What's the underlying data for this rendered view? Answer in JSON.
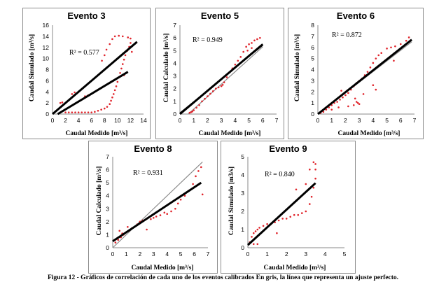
{
  "caption": "Figura 12 - Gráficos de correlación de cada uno de los eventos calibrados En gris, la línea que representa un ajuste perfecto.",
  "colors": {
    "points": "#e0242b",
    "fit": "#000000",
    "perfect": "#8a8a8a",
    "frame": "#8c8c8c"
  },
  "chart_data": [
    {
      "type": "scatter",
      "title": "Evento 3",
      "xlabel": "Caudal Medido [m³/s]",
      "ylabel": "Caudal Simulado [m³/s]",
      "r2": "R² = 0.577",
      "xlim": [
        0,
        14
      ],
      "ylim": [
        0,
        16
      ],
      "xticks": [
        0,
        2,
        4,
        6,
        8,
        10,
        12,
        14
      ],
      "yticks": [
        0,
        2,
        4,
        6,
        8,
        10,
        12,
        14,
        16
      ],
      "fit_line": [
        [
          0.8,
          0
        ],
        [
          11.6,
          7.6
        ]
      ],
      "perfect_line": [
        [
          0,
          0
        ],
        [
          13,
          13
        ]
      ],
      "points": [
        [
          1.2,
          2.0
        ],
        [
          1.5,
          2.1
        ],
        [
          3.0,
          3.6
        ],
        [
          3.4,
          3.9
        ],
        [
          2.0,
          0.3
        ],
        [
          2.5,
          0.3
        ],
        [
          3.0,
          0.3
        ],
        [
          3.5,
          0.3
        ],
        [
          4.0,
          0.3
        ],
        [
          4.5,
          0.3
        ],
        [
          5.0,
          0.3
        ],
        [
          5.5,
          0.3
        ],
        [
          6.0,
          0.3
        ],
        [
          6.5,
          0.4
        ],
        [
          7.0,
          0.6
        ],
        [
          7.5,
          0.8
        ],
        [
          8.0,
          1.0
        ],
        [
          8.4,
          1.3
        ],
        [
          8.8,
          1.8
        ],
        [
          9.0,
          2.4
        ],
        [
          9.2,
          3.0
        ],
        [
          9.4,
          3.6
        ],
        [
          9.6,
          4.3
        ],
        [
          9.8,
          5.0
        ],
        [
          10.0,
          5.8
        ],
        [
          10.2,
          6.6
        ],
        [
          10.4,
          7.4
        ],
        [
          10.6,
          8.2
        ],
        [
          10.8,
          9.0
        ],
        [
          11.0,
          9.8
        ],
        [
          11.2,
          10.6
        ],
        [
          11.5,
          11.4
        ],
        [
          11.8,
          12.1
        ],
        [
          12.0,
          12.8
        ],
        [
          12.0,
          13.6
        ],
        [
          11.6,
          13.8
        ],
        [
          10.8,
          14.0
        ],
        [
          10.2,
          14.1
        ],
        [
          9.6,
          14.0
        ],
        [
          9.2,
          13.5
        ],
        [
          8.8,
          12.6
        ],
        [
          8.3,
          11.6
        ],
        [
          8.0,
          10.6
        ],
        [
          7.6,
          9.6
        ],
        [
          11.0,
          7.0
        ],
        [
          12.2,
          11.2
        ],
        [
          5.5,
          3.4
        ],
        [
          5.0,
          3.2
        ]
      ]
    },
    {
      "type": "scatter",
      "title": "Evento 5",
      "xlabel": "Caudal Medido [m³/s]",
      "ylabel": "Caudal Calculado [m³/s]",
      "r2": "R² = 0.949",
      "xlim": [
        0,
        7
      ],
      "ylim": [
        0,
        7
      ],
      "xticks": [
        0,
        1,
        2,
        3,
        4,
        5,
        6,
        7
      ],
      "yticks": [
        0,
        1,
        2,
        3,
        4,
        5,
        6,
        7
      ],
      "fit_line": [
        [
          0,
          0.1
        ],
        [
          6.0,
          5.4
        ]
      ],
      "perfect_line": [
        [
          0.6,
          0
        ],
        [
          6.0,
          5.3
        ]
      ],
      "points": [
        [
          0.7,
          0.1
        ],
        [
          0.8,
          0.15
        ],
        [
          0.9,
          0.2
        ],
        [
          1.0,
          0.3
        ],
        [
          1.2,
          0.5
        ],
        [
          1.4,
          0.7
        ],
        [
          1.6,
          1.0
        ],
        [
          1.8,
          1.2
        ],
        [
          2.0,
          1.4
        ],
        [
          2.2,
          1.6
        ],
        [
          2.4,
          1.8
        ],
        [
          2.6,
          2.0
        ],
        [
          2.8,
          2.1
        ],
        [
          3.0,
          2.2
        ],
        [
          3.2,
          2.5
        ],
        [
          3.4,
          2.9
        ],
        [
          3.6,
          3.3
        ],
        [
          3.8,
          3.6
        ],
        [
          4.0,
          3.9
        ],
        [
          4.2,
          4.2
        ],
        [
          4.4,
          4.5
        ],
        [
          4.6,
          4.9
        ],
        [
          4.8,
          5.3
        ],
        [
          5.0,
          5.5
        ],
        [
          5.2,
          5.6
        ],
        [
          5.4,
          5.8
        ],
        [
          5.6,
          5.9
        ],
        [
          5.8,
          6.0
        ],
        [
          5.2,
          5.2
        ],
        [
          5.6,
          5.1
        ],
        [
          4.9,
          5.0
        ],
        [
          3.1,
          2.3
        ]
      ]
    },
    {
      "type": "scatter",
      "title": "Evento 6",
      "xlabel": "Caudal Medido [m³/s]",
      "ylabel": "Caudal Simulado [m³/s]",
      "r2": "R² = 0.872",
      "xlim": [
        0,
        7
      ],
      "ylim": [
        0,
        8
      ],
      "xticks": [
        0,
        1,
        2,
        3,
        4,
        5,
        6,
        7
      ],
      "yticks": [
        0,
        1,
        2,
        3,
        4,
        5,
        6,
        7,
        8
      ],
      "fit_line": [
        [
          0,
          0
        ],
        [
          6.8,
          6.7
        ]
      ],
      "perfect_line": [
        [
          0,
          0
        ],
        [
          6.8,
          6.5
        ]
      ],
      "points": [
        [
          0.2,
          0.1
        ],
        [
          0.4,
          0.2
        ],
        [
          0.6,
          0.4
        ],
        [
          0.8,
          0.6
        ],
        [
          1.0,
          0.8
        ],
        [
          1.2,
          1.0
        ],
        [
          1.4,
          1.1
        ],
        [
          1.6,
          1.3
        ],
        [
          1.8,
          1.5
        ],
        [
          2.0,
          1.7
        ],
        [
          2.2,
          1.9
        ],
        [
          2.4,
          2.2
        ],
        [
          2.6,
          2.5
        ],
        [
          2.8,
          2.8
        ],
        [
          3.0,
          3.0
        ],
        [
          3.2,
          3.2
        ],
        [
          3.4,
          3.5
        ],
        [
          3.6,
          3.8
        ],
        [
          3.8,
          4.2
        ],
        [
          4.0,
          4.6
        ],
        [
          4.2,
          5.0
        ],
        [
          4.4,
          5.3
        ],
        [
          4.6,
          5.5
        ],
        [
          5.0,
          5.9
        ],
        [
          5.3,
          6.0
        ],
        [
          5.6,
          6.1
        ],
        [
          6.0,
          6.3
        ],
        [
          6.4,
          6.6
        ],
        [
          6.6,
          6.9
        ],
        [
          2.7,
          1.4
        ],
        [
          2.8,
          1.1
        ],
        [
          2.9,
          1.0
        ],
        [
          3.0,
          0.9
        ],
        [
          2.6,
          0.8
        ],
        [
          2.2,
          0.7
        ],
        [
          1.5,
          0.6
        ],
        [
          1.0,
          0.4
        ],
        [
          4.0,
          2.6
        ],
        [
          4.2,
          2.2
        ],
        [
          5.5,
          4.8
        ],
        [
          3.3,
          1.8
        ],
        [
          1.7,
          2.1
        ]
      ]
    },
    {
      "type": "scatter",
      "title": "Evento 8",
      "xlabel": "Caudal Medido [m³/s]",
      "ylabel": "Caudal Calculado [m³/s]",
      "r2": "R² = 0.931",
      "xlim": [
        0,
        7
      ],
      "ylim": [
        0,
        7
      ],
      "xticks": [
        0,
        1,
        2,
        3,
        4,
        5,
        6,
        7
      ],
      "yticks": [
        0,
        1,
        2,
        3,
        4,
        5,
        6,
        7
      ],
      "fit_line": [
        [
          0,
          0.5
        ],
        [
          6.5,
          5.0
        ]
      ],
      "perfect_line": [
        [
          0,
          0
        ],
        [
          6.6,
          6.6
        ]
      ],
      "points": [
        [
          0.2,
          0.4
        ],
        [
          0.4,
          0.6
        ],
        [
          0.6,
          0.8
        ],
        [
          0.8,
          1.0
        ],
        [
          1.0,
          1.2
        ],
        [
          1.2,
          1.3
        ],
        [
          1.4,
          1.5
        ],
        [
          1.6,
          1.6
        ],
        [
          1.8,
          1.8
        ],
        [
          2.0,
          2.0
        ],
        [
          2.2,
          2.1
        ],
        [
          2.5,
          1.4
        ],
        [
          2.8,
          2.2
        ],
        [
          3.0,
          2.3
        ],
        [
          3.2,
          2.4
        ],
        [
          3.5,
          2.5
        ],
        [
          3.8,
          2.7
        ],
        [
          4.0,
          2.6
        ],
        [
          4.3,
          2.8
        ],
        [
          4.6,
          3.0
        ],
        [
          4.8,
          3.4
        ],
        [
          5.0,
          3.7
        ],
        [
          5.3,
          4.0
        ],
        [
          5.6,
          4.4
        ],
        [
          5.9,
          4.9
        ],
        [
          6.1,
          5.5
        ],
        [
          6.3,
          5.9
        ],
        [
          6.5,
          6.2
        ],
        [
          6.6,
          4.1
        ],
        [
          0.5,
          1.3
        ],
        [
          0.7,
          1.1
        ],
        [
          1.1,
          1.6
        ]
      ]
    },
    {
      "type": "scatter",
      "title": "Evento 9",
      "xlabel": "Caudal Medido [m³/s]",
      "ylabel": "Caudal Simulado [m3/s]",
      "r2": "R² = 0.840",
      "xlim": [
        0,
        5
      ],
      "ylim": [
        0,
        5
      ],
      "xticks": [
        0,
        1,
        2,
        3,
        4,
        5
      ],
      "yticks": [
        0,
        1,
        2,
        3,
        4,
        5
      ],
      "fit_line": [
        [
          0,
          0.15
        ],
        [
          3.5,
          3.55
        ]
      ],
      "perfect_line": [
        [
          0,
          0.1
        ],
        [
          3.4,
          3.4
        ]
      ],
      "points": [
        [
          0.1,
          0.3
        ],
        [
          0.2,
          0.6
        ],
        [
          0.3,
          0.8
        ],
        [
          0.4,
          0.9
        ],
        [
          0.5,
          1.0
        ],
        [
          0.6,
          1.1
        ],
        [
          0.8,
          1.2
        ],
        [
          1.0,
          1.3
        ],
        [
          1.2,
          1.3
        ],
        [
          1.4,
          1.4
        ],
        [
          1.6,
          1.5
        ],
        [
          1.8,
          1.6
        ],
        [
          2.0,
          1.6
        ],
        [
          2.2,
          1.7
        ],
        [
          2.4,
          1.8
        ],
        [
          2.6,
          1.8
        ],
        [
          2.8,
          1.9
        ],
        [
          3.0,
          2.0
        ],
        [
          3.2,
          2.4
        ],
        [
          3.3,
          2.8
        ],
        [
          3.4,
          3.3
        ],
        [
          3.5,
          3.8
        ],
        [
          3.5,
          4.3
        ],
        [
          3.5,
          4.6
        ],
        [
          3.4,
          4.7
        ],
        [
          3.2,
          4.3
        ],
        [
          3.0,
          3.5
        ],
        [
          2.5,
          3.2
        ],
        [
          1.5,
          0.8
        ],
        [
          0.3,
          0.2
        ],
        [
          0.5,
          0.2
        ]
      ]
    }
  ]
}
